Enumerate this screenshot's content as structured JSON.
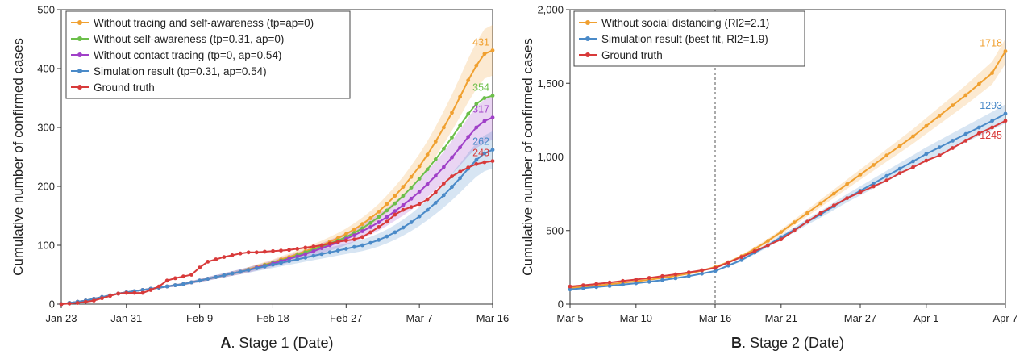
{
  "chart_data": [
    {
      "type": "line",
      "panel_letter": "A",
      "panel_caption": ". Stage 1 (Date)",
      "ylabel": "Cumulative number of confirmed cases",
      "ylim": [
        0,
        500
      ],
      "yticks": [
        0,
        100,
        200,
        300,
        400,
        500
      ],
      "ytick_labels": [
        "0",
        "100",
        "200",
        "300",
        "400",
        "500"
      ],
      "xlim": [
        0,
        53
      ],
      "xticks": [
        0,
        8,
        17,
        26,
        35,
        44,
        53
      ],
      "xtick_labels": [
        "Jan 23",
        "Jan 31",
        "Feb 9",
        "Feb 18",
        "Feb 27",
        "Mar 7",
        "Mar 16"
      ],
      "legend_position": "top-left",
      "series": [
        {
          "name": "Without tracing and self-awareness (tp=ap=0)",
          "color": "#f0a030",
          "end_label": "431",
          "band": 0.1,
          "x": [
            0,
            1,
            2,
            3,
            4,
            5,
            6,
            7,
            8,
            9,
            10,
            11,
            12,
            13,
            14,
            15,
            16,
            17,
            18,
            19,
            20,
            21,
            22,
            23,
            24,
            25,
            26,
            27,
            28,
            29,
            30,
            31,
            32,
            33,
            34,
            35,
            36,
            37,
            38,
            39,
            40,
            41,
            42,
            43,
            44,
            45,
            46,
            47,
            48,
            49,
            50,
            51,
            52,
            53
          ],
          "y": [
            0,
            2,
            4,
            6,
            9,
            12,
            15,
            18,
            20,
            22,
            24,
            26,
            28,
            30,
            32,
            34,
            37,
            40,
            43,
            46,
            49,
            52,
            55,
            59,
            63,
            67,
            71,
            76,
            80,
            85,
            90,
            95,
            100,
            106,
            112,
            119,
            127,
            136,
            146,
            157,
            170,
            184,
            199,
            216,
            234,
            254,
            276,
            300,
            325,
            352,
            380,
            405,
            425,
            431
          ]
        },
        {
          "name": "Without self-awareness (tp=0.31, ap=0)",
          "color": "#6cbf4a",
          "end_label": "354",
          "band": 0,
          "x": [
            0,
            1,
            2,
            3,
            4,
            5,
            6,
            7,
            8,
            9,
            10,
            11,
            12,
            13,
            14,
            15,
            16,
            17,
            18,
            19,
            20,
            21,
            22,
            23,
            24,
            25,
            26,
            27,
            28,
            29,
            30,
            31,
            32,
            33,
            34,
            35,
            36,
            37,
            38,
            39,
            40,
            41,
            42,
            43,
            44,
            45,
            46,
            47,
            48,
            49,
            50,
            51,
            52,
            53
          ],
          "y": [
            0,
            2,
            4,
            6,
            9,
            12,
            15,
            18,
            20,
            22,
            24,
            26,
            28,
            30,
            32,
            34,
            37,
            40,
            43,
            46,
            49,
            52,
            55,
            58,
            62,
            66,
            70,
            74,
            78,
            83,
            88,
            93,
            98,
            103,
            108,
            114,
            121,
            129,
            138,
            148,
            159,
            171,
            184,
            198,
            213,
            229,
            246,
            264,
            283,
            303,
            323,
            340,
            350,
            354
          ]
        },
        {
          "name": "Without contact tracing (tp=0, ap=0.54)",
          "color": "#a040c8",
          "end_label": "317",
          "band": 0.12,
          "x": [
            0,
            1,
            2,
            3,
            4,
            5,
            6,
            7,
            8,
            9,
            10,
            11,
            12,
            13,
            14,
            15,
            16,
            17,
            18,
            19,
            20,
            21,
            22,
            23,
            24,
            25,
            26,
            27,
            28,
            29,
            30,
            31,
            32,
            33,
            34,
            35,
            36,
            37,
            38,
            39,
            40,
            41,
            42,
            43,
            44,
            45,
            46,
            47,
            48,
            49,
            50,
            51,
            52,
            53
          ],
          "y": [
            0,
            2,
            4,
            6,
            9,
            12,
            15,
            18,
            20,
            22,
            24,
            26,
            28,
            30,
            32,
            34,
            37,
            40,
            43,
            46,
            49,
            52,
            55,
            58,
            62,
            65,
            69,
            73,
            77,
            81,
            85,
            90,
            95,
            100,
            105,
            111,
            117,
            124,
            131,
            139,
            148,
            158,
            168,
            179,
            191,
            204,
            218,
            233,
            249,
            266,
            284,
            300,
            311,
            317
          ]
        },
        {
          "name": "Simulation result (tp=0.31, ap=0.54)",
          "color": "#4a8ac8",
          "end_label": "262",
          "band": 0.12,
          "x": [
            0,
            1,
            2,
            3,
            4,
            5,
            6,
            7,
            8,
            9,
            10,
            11,
            12,
            13,
            14,
            15,
            16,
            17,
            18,
            19,
            20,
            21,
            22,
            23,
            24,
            25,
            26,
            27,
            28,
            29,
            30,
            31,
            32,
            33,
            34,
            35,
            36,
            37,
            38,
            39,
            40,
            41,
            42,
            43,
            44,
            45,
            46,
            47,
            48,
            49,
            50,
            51,
            52,
            53
          ],
          "y": [
            0,
            2,
            4,
            6,
            9,
            12,
            15,
            18,
            20,
            22,
            24,
            26,
            28,
            30,
            32,
            34,
            37,
            40,
            43,
            46,
            49,
            52,
            55,
            58,
            61,
            64,
            67,
            70,
            73,
            76,
            79,
            82,
            85,
            88,
            91,
            94,
            97,
            100,
            104,
            109,
            115,
            122,
            130,
            139,
            149,
            160,
            172,
            185,
            199,
            214,
            230,
            245,
            256,
            262
          ]
        },
        {
          "name": "Ground truth",
          "color": "#d83a3a",
          "end_label": "243",
          "band": 0,
          "x": [
            0,
            1,
            2,
            3,
            4,
            5,
            6,
            7,
            8,
            9,
            10,
            11,
            12,
            13,
            14,
            15,
            16,
            17,
            18,
            19,
            20,
            21,
            22,
            23,
            24,
            25,
            26,
            27,
            28,
            29,
            30,
            31,
            32,
            33,
            34,
            35,
            36,
            37,
            38,
            39,
            40,
            41,
            42,
            43,
            44,
            45,
            46,
            47,
            48,
            49,
            50,
            51,
            52,
            53
          ],
          "y": [
            0,
            1,
            2,
            4,
            6,
            10,
            14,
            18,
            19,
            19,
            19,
            24,
            30,
            40,
            44,
            47,
            50,
            62,
            72,
            76,
            80,
            83,
            86,
            88,
            88,
            89,
            90,
            91,
            92,
            94,
            96,
            98,
            100,
            103,
            106,
            108,
            110,
            114,
            122,
            131,
            140,
            152,
            160,
            165,
            170,
            178,
            190,
            205,
            217,
            225,
            232,
            238,
            241,
            243
          ]
        }
      ]
    },
    {
      "type": "line",
      "panel_letter": "B",
      "panel_caption": ". Stage 2 (Date)",
      "ylabel": "Cumulative number of confirmed cases",
      "ylim": [
        0,
        2000
      ],
      "yticks": [
        0,
        500,
        1000,
        1500,
        2000
      ],
      "ytick_labels": [
        "0",
        "500",
        "1,000",
        "1,500",
        "2,000"
      ],
      "xlim": [
        0,
        33
      ],
      "xticks": [
        0,
        5,
        11,
        16,
        22,
        27,
        33
      ],
      "xtick_labels": [
        "Mar 5",
        "Mar 10",
        "Mar 16",
        "Mar 21",
        "Mar 27",
        "Apr 1",
        "Apr 7"
      ],
      "vline_x": 11,
      "legend_position": "top-left",
      "series": [
        {
          "name": "Without social distancing (Rl2=2.1)",
          "color": "#f0a030",
          "end_label": "1718",
          "band": 0.05,
          "x": [
            0,
            1,
            2,
            3,
            4,
            5,
            6,
            7,
            8,
            9,
            10,
            11,
            12,
            13,
            14,
            15,
            16,
            17,
            18,
            19,
            20,
            21,
            22,
            23,
            24,
            25,
            26,
            27,
            28,
            29,
            30,
            31,
            32,
            33
          ],
          "y": [
            110,
            118,
            126,
            135,
            145,
            155,
            166,
            178,
            192,
            208,
            228,
            252,
            285,
            325,
            375,
            430,
            490,
            555,
            620,
            685,
            750,
            815,
            880,
            945,
            1010,
            1075,
            1140,
            1210,
            1280,
            1350,
            1420,
            1495,
            1570,
            1718
          ]
        },
        {
          "name": "Simulation result (best fit, Rl2=1.9)",
          "color": "#4a8ac8",
          "end_label": "1293",
          "band": 0.05,
          "x": [
            0,
            1,
            2,
            3,
            4,
            5,
            6,
            7,
            8,
            9,
            10,
            11,
            12,
            13,
            14,
            15,
            16,
            17,
            18,
            19,
            20,
            21,
            22,
            23,
            24,
            25,
            26,
            27,
            28,
            29,
            30,
            31,
            32,
            33
          ],
          "y": [
            100,
            108,
            116,
            124,
            133,
            142,
            152,
            163,
            176,
            190,
            207,
            225,
            262,
            300,
            350,
            400,
            455,
            505,
            560,
            610,
            665,
            720,
            770,
            820,
            870,
            920,
            970,
            1020,
            1065,
            1110,
            1155,
            1200,
            1245,
            1293
          ]
        },
        {
          "name": "Ground truth",
          "color": "#d83a3a",
          "end_label": "1245",
          "band": 0,
          "x": [
            0,
            1,
            2,
            3,
            4,
            5,
            6,
            7,
            8,
            9,
            10,
            11,
            12,
            13,
            14,
            15,
            16,
            17,
            18,
            19,
            20,
            21,
            22,
            23,
            24,
            25,
            26,
            27,
            28,
            29,
            30,
            31,
            32,
            33
          ],
          "y": [
            120,
            128,
            137,
            147,
            157,
            167,
            178,
            190,
            203,
            216,
            230,
            246,
            282,
            320,
            360,
            400,
            440,
            500,
            560,
            620,
            670,
            720,
            760,
            800,
            840,
            890,
            930,
            975,
            1010,
            1060,
            1110,
            1160,
            1200,
            1245
          ]
        }
      ]
    }
  ]
}
